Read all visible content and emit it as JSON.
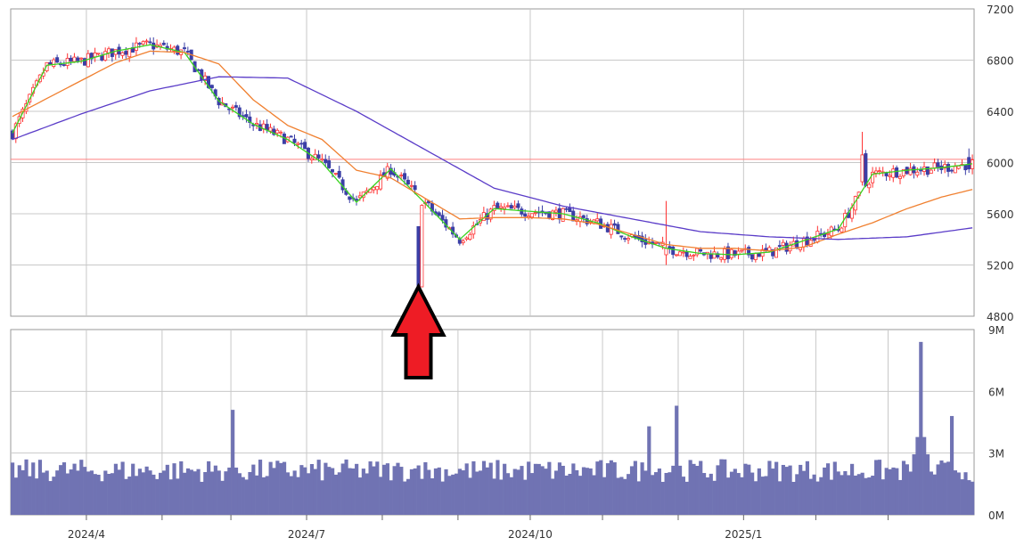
{
  "colors": {
    "grid": "#c8c8c8",
    "up_candle": "#ff3030",
    "down_candle": "#3b3fa6",
    "ma_short": "#39d31f",
    "ma_mid": "#f08030",
    "ma_long": "#5a3cc8",
    "volume": "#7073b3",
    "hline": "#ff8080",
    "arrow_fill": "#ee1c25",
    "arrow_stroke": "#000000"
  },
  "chart_data": [
    {
      "type": "candlestick",
      "panel": "price",
      "ylim": [
        4800,
        7200
      ],
      "y_ticks": [
        "7200",
        "6800",
        "6400",
        "6000",
        "5600",
        "5200",
        "4800"
      ],
      "x_ticks": [
        "2024/4",
        "2024/7",
        "2024/10",
        "2025/1"
      ],
      "reference_line": 6025,
      "grid": true,
      "series": [
        {
          "name": "",
          "kind": "ma_short",
          "x_day": [
            0,
            10,
            20,
            30,
            40,
            50,
            60,
            70,
            80,
            90,
            100,
            110,
            120,
            130,
            140,
            150,
            160,
            170,
            180,
            190,
            200,
            210,
            220,
            230,
            240,
            250,
            260,
            270,
            279
          ],
          "values": [
            6230,
            6760,
            6790,
            6870,
            6920,
            6860,
            6480,
            6300,
            6180,
            6000,
            5690,
            5950,
            5680,
            5400,
            5640,
            5620,
            5600,
            5530,
            5420,
            5330,
            5290,
            5280,
            5300,
            5390,
            5480,
            5910,
            5940,
            5960,
            5990
          ]
        },
        {
          "name": "",
          "kind": "ma_mid",
          "x_day": [
            0,
            10,
            20,
            30,
            40,
            50,
            60,
            70,
            80,
            90,
            100,
            110,
            120,
            130,
            140,
            150,
            160,
            170,
            180,
            190,
            200,
            210,
            220,
            230,
            240,
            250,
            260,
            270,
            279
          ],
          "values": [
            6360,
            6500,
            6640,
            6780,
            6870,
            6860,
            6770,
            6490,
            6290,
            6180,
            5940,
            5880,
            5720,
            5560,
            5570,
            5570,
            5560,
            5520,
            5440,
            5360,
            5330,
            5330,
            5310,
            5340,
            5440,
            5530,
            5640,
            5730,
            5790
          ]
        },
        {
          "name": "",
          "kind": "ma_long",
          "x_day": [
            0,
            20,
            40,
            60,
            80,
            100,
            120,
            140,
            160,
            180,
            200,
            220,
            240,
            260,
            279
          ],
          "values": [
            6180,
            6380,
            6560,
            6670,
            6660,
            6400,
            6100,
            5800,
            5660,
            5560,
            5460,
            5420,
            5400,
            5420,
            5490
          ]
        }
      ],
      "candles": {
        "points": [
          {
            "day": 118,
            "open": 5500,
            "high": 5500,
            "low": 5030,
            "close": 5040
          },
          {
            "day": 247,
            "open": 5850,
            "high": 6240,
            "low": 5820,
            "close": 6060
          },
          {
            "day": 190,
            "open": 5280,
            "high": 5700,
            "low": 5200,
            "close": 5330
          },
          {
            "day": 278,
            "open": 6040,
            "high": 6110,
            "low": 5920,
            "close": 5950
          }
        ]
      }
    },
    {
      "type": "bar",
      "panel": "volume",
      "ylim": [
        0,
        9
      ],
      "y_ticks": [
        "9M",
        "6M",
        "3M",
        "0M"
      ],
      "x_ticks": [
        "2024/4",
        "2024/7",
        "2024/10",
        "2025/1"
      ],
      "grid": true,
      "peaks": [
        {
          "day": 64,
          "value": 5.1
        },
        {
          "day": 118,
          "value": 2.4
        },
        {
          "day": 185,
          "value": 4.3
        },
        {
          "day": 193,
          "value": 5.3
        },
        {
          "day": 264,
          "value": 8.4
        },
        {
          "day": 273,
          "value": 4.8
        }
      ],
      "baseline": 1.6
    }
  ],
  "annotation": {
    "name": "red-up-arrow",
    "points_to_day": 118
  }
}
